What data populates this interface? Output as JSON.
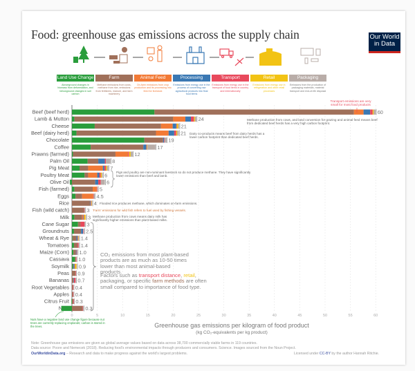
{
  "header": {
    "title": "Food: greenhouse gas emissions across the supply chain",
    "logo": "Our World in Data",
    "logo_line1": "Our World",
    "logo_line2": "in Data"
  },
  "stages": [
    {
      "label": "Land Use Change",
      "color": "#2a9d3c",
      "desc": "Aboveground changes in biomass from deforestation, and belowground changes in soil carbon",
      "icon": "tree-stump-icon"
    },
    {
      "label": "Farm",
      "color": "#a0705a",
      "desc": "Methane emissions from cows, methane from rice, emissions from fertilizers, manure, and farm machinery",
      "icon": "cow-tractor-icon"
    },
    {
      "label": "Animal Feed",
      "color": "#f27a36",
      "desc": "On-farm emissions from crop production and its processing into feed for livestock",
      "icon": "farmer-barn-icon"
    },
    {
      "label": "Processing",
      "color": "#3a78b3",
      "desc": "Emissions from energy use in the process of converting raw agricultural products into final food items",
      "icon": "factory-icon"
    },
    {
      "label": "Transport",
      "color": "#e8495c",
      "desc": "Emissions from energy use in the transport of food items in country and internationally",
      "icon": "truck-plane-icon"
    },
    {
      "label": "Retail",
      "color": "#f2c314",
      "desc": "Emissions from energy use in refrigeration and other retail processes",
      "icon": "shop-icon"
    },
    {
      "label": "Packaging",
      "color": "#b9ada8",
      "desc": "Emissions from the production of packaging materials, material transport and end-of-life disposal",
      "icon": "packaging-icon"
    }
  ],
  "chart_data": {
    "type": "bar",
    "stacked": true,
    "orientation": "horizontal",
    "xlabel": "Greenhouse gas emissions per kilogram of food product",
    "xlabel_units": "(kg CO₂-equivalents per kg product)",
    "xlim": [
      -2,
      62
    ],
    "xticks": [
      "0",
      "5",
      "10",
      "15",
      "20",
      "25",
      "30",
      "35",
      "40",
      "45",
      "50",
      "55",
      "60"
    ],
    "grid": true,
    "series_names": [
      "Land Use Change",
      "Farm",
      "Animal Feed",
      "Processing",
      "Transport",
      "Retail",
      "Packaging"
    ],
    "categories": [
      "Beef (beef herd)",
      "Lamb & Mutton",
      "Cheese",
      "Beef (dairy herd)",
      "Chocolate",
      "Coffee",
      "Prawns (farmed)",
      "Palm Oil",
      "Pig Meat",
      "Poultry Meat",
      "Olive Oil",
      "Fish (farmed)",
      "Eggs",
      "Rice",
      "Fish (wild catch)",
      "Milk",
      "Cane Sugar",
      "Groundnuts",
      "Wheat & Rye",
      "Tomatoes",
      "Maize (Corn)",
      "Cassava",
      "Soymilk",
      "Peas",
      "Bananas",
      "Root Vegetables",
      "Apples",
      "Citrus Fruit",
      "Nuts"
    ],
    "totals": [
      "60",
      "24",
      "21",
      "21",
      "19",
      "17",
      "12",
      "8",
      "7",
      "6",
      "6",
      "5",
      "4.5",
      "4",
      "3",
      "3",
      "3",
      "2.5",
      "1.4",
      "1.4",
      "1.0",
      "1.0",
      "0.9",
      "0.9",
      "0.7",
      "0.4",
      "0.4",
      "0.3",
      "0.3"
    ],
    "values": [
      [
        16.3,
        39.4,
        1.9,
        1.3,
        0.5,
        0.2,
        0.4
      ],
      [
        0.5,
        19.5,
        2.4,
        1.1,
        0.6,
        0.2,
        0.3
      ],
      [
        4.5,
        13.1,
        2.3,
        0.7,
        0.1,
        0.3,
        0.2
      ],
      [
        0.9,
        15.7,
        2.5,
        1.1,
        0.4,
        0.2,
        0.3
      ],
      [
        14.3,
        3.7,
        0,
        0.2,
        0.1,
        0,
        0.4
      ],
      [
        3.7,
        10.4,
        0,
        0.6,
        0.1,
        0.1,
        1.6
      ],
      [
        0.2,
        8.4,
        2.5,
        0,
        0.2,
        0.3,
        0.4
      ],
      [
        3.1,
        2.1,
        0,
        1.3,
        0.2,
        0,
        0.9
      ],
      [
        1.5,
        1.7,
        2.9,
        0.3,
        0.3,
        0.2,
        0.3
      ],
      [
        2.5,
        0.7,
        1.8,
        0.4,
        0.3,
        0.2,
        0.2
      ],
      [
        -0.4,
        4.6,
        0,
        0.6,
        0.5,
        0,
        0.8
      ],
      [
        0.5,
        3.6,
        0.8,
        0,
        0.1,
        0,
        0.1
      ],
      [
        0.7,
        1.3,
        2.2,
        0,
        0.1,
        0,
        0.2
      ],
      [
        0,
        3.6,
        0,
        0.1,
        0.1,
        0.1,
        0.1
      ],
      [
        0,
        2.4,
        0,
        0,
        0.1,
        0,
        0.1
      ],
      [
        0.5,
        1.5,
        0.2,
        0.1,
        0.1,
        0.3,
        0.1
      ],
      [
        1.2,
        0.5,
        0,
        0,
        0.8,
        0,
        0.1
      ],
      [
        0.4,
        1.4,
        0,
        0.4,
        0.1,
        0,
        0.1
      ],
      [
        0.1,
        0.8,
        0,
        0.2,
        0.1,
        0.1,
        0.1
      ],
      [
        0.4,
        0.7,
        0,
        0,
        0.2,
        0,
        0.1
      ],
      [
        0.3,
        0.5,
        0,
        0.1,
        0.1,
        0,
        0.1
      ],
      [
        0.6,
        0.2,
        0,
        0,
        0.1,
        0,
        0
      ],
      [
        0.2,
        0.1,
        0,
        0.2,
        0.1,
        0.3,
        0.1
      ],
      [
        0,
        0.7,
        0,
        0,
        0.1,
        0,
        0
      ],
      [
        0,
        0.3,
        0,
        0.1,
        0.3,
        0,
        0.1
      ],
      [
        0,
        0.2,
        0,
        0,
        0.1,
        0,
        0
      ],
      [
        0,
        0.2,
        0,
        0,
        0.1,
        0,
        0
      ],
      [
        -0.1,
        0.3,
        0,
        0,
        0.1,
        0,
        0
      ],
      [
        -2.1,
        2.1,
        0,
        0,
        0.1,
        0,
        0.1
      ]
    ]
  },
  "annotations": {
    "transport": "Transport emissions are very small for most food products",
    "beef": "Methane production from cows, and land conversion for grazing and animal feed means beef from dedicated beef herds has a very high carbon footprint.",
    "dairy": "Dairy co-products means beef from dairy herds has a lower carbon footprint than dedicated beef herds.",
    "pig": "Pigs and poultry are non-ruminant livestock so do not produce methane. They have significantly lower emissions than beef and lamb.",
    "rice": "Flooded rice produces methane, which dominates on-farm emissions.",
    "fish": "'Farm' emissions for wild fish refers to fuel used by fishing vessels.",
    "milk": "Methane production from cows means dairy milk has significantly higher emissions than plant-based milks.",
    "plant1": "CO₂ emissions from most plant-based products are as much as 10-50 times lower than most animal-based products.",
    "plant2_a": "Factors such as ",
    "plant2_b": "transport distance",
    "plant2_c": ", ",
    "plant2_d": "retail",
    "plant2_e": ", packaging, or specific ",
    "plant2_f": "farm methods",
    "plant2_g": " are often small compared to importance of food type.",
    "nuts": "Nuts have a negative land use change figure because nut trees are currently replacing croplands; carbon is stored in the trees."
  },
  "footer": {
    "note": "Note: Greenhouse gas emissions are given as global average values based on data across 38,700 commercially viable farms in 119 countries.",
    "source": "Data source: Poore and Nemecek (2018). Reducing food's environmental impacts through producers and consumers. Science. Images sourced from the Noun Project.",
    "site": "OurWorldinData.org",
    "tagline": " – Research and data to make progress against the world's largest problems.",
    "license_a": "Licensed under ",
    "license_link": "CC-BY",
    "license_b": " by the author Hannah Ritchie."
  }
}
